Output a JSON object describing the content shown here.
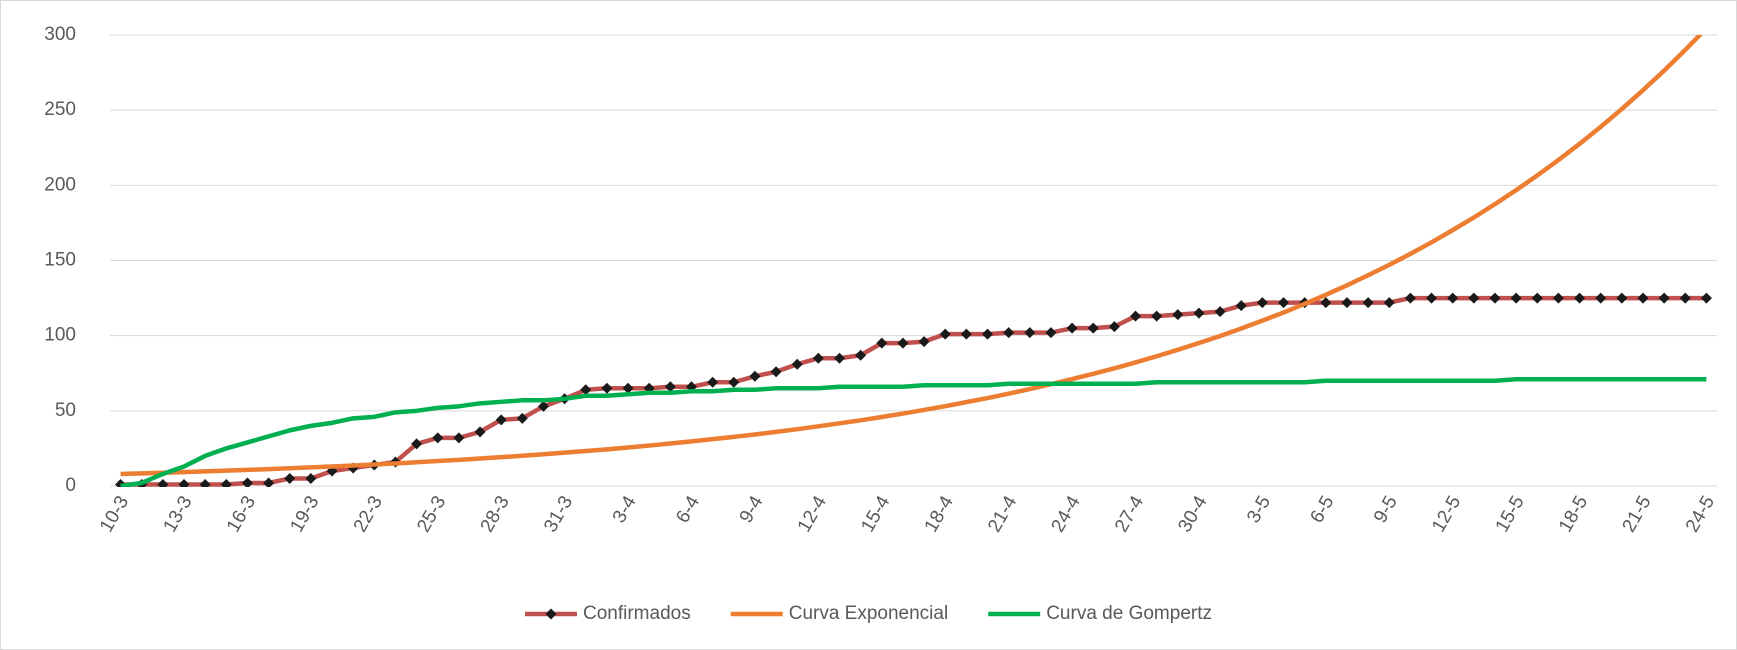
{
  "chart_data": {
    "type": "line",
    "categories": [
      "10-3",
      null,
      null,
      "13-3",
      null,
      null,
      "16-3",
      null,
      null,
      "19-3",
      null,
      null,
      "22-3",
      null,
      null,
      "25-3",
      null,
      null,
      "28-3",
      null,
      null,
      "31-3",
      null,
      null,
      "3-4",
      null,
      null,
      "6-4",
      null,
      null,
      "9-4",
      null,
      null,
      "12-4",
      null,
      null,
      "15-4",
      null,
      null,
      "18-4",
      null,
      null,
      "21-4",
      null,
      null,
      "24-4",
      null,
      null,
      "27-4",
      null,
      null,
      "30-4",
      null,
      null,
      "3-5",
      null,
      null,
      "6-5",
      null,
      null,
      "9-5",
      null,
      null,
      "12-5",
      null,
      null,
      "15-5",
      null,
      null,
      "18-5",
      null,
      null,
      "21-5",
      null,
      null,
      "24-5"
    ],
    "series": [
      {
        "name": "Confirmados",
        "color": "#c0504d",
        "marker": "diamond",
        "marker_color": "#1a1a1a",
        "values": [
          1,
          1,
          1,
          1,
          1,
          1,
          2,
          2,
          5,
          5,
          10,
          12,
          14,
          16,
          28,
          32,
          32,
          36,
          44,
          45,
          53,
          58,
          64,
          65,
          65,
          65,
          66,
          66,
          69,
          69,
          73,
          76,
          81,
          85,
          85,
          87,
          95,
          95,
          96,
          101,
          101,
          101,
          102,
          102,
          102,
          105,
          105,
          106,
          113,
          113,
          114,
          115,
          116,
          120,
          122,
          122,
          122,
          122,
          122,
          122,
          122,
          125,
          125,
          125,
          125,
          125,
          125,
          125,
          125,
          125,
          125,
          125,
          125,
          125,
          125,
          125
        ]
      },
      {
        "name": "Curva Exponencial",
        "color": "#ed7d31",
        "values": [
          8.0,
          8.4,
          8.8,
          9.2,
          9.7,
          10.2,
          10.7,
          11.2,
          11.8,
          12.4,
          13.0,
          13.6,
          14.3,
          15.0,
          15.8,
          16.6,
          17.4,
          18.3,
          19.2,
          20.1,
          21.1,
          22.2,
          23.3,
          24.4,
          25.6,
          26.9,
          28.3,
          29.7,
          31.2,
          32.7,
          34.3,
          36.0,
          37.8,
          39.7,
          41.7,
          43.7,
          45.9,
          48.2,
          50.6,
          53.1,
          55.8,
          58.5,
          61.4,
          64.5,
          67.7,
          71.1,
          74.6,
          78.3,
          82.2,
          86.3,
          90.6,
          95.1,
          99.8,
          104.8,
          110.0,
          115.4,
          121.2,
          127.2,
          133.5,
          140.2,
          147.1,
          154.4,
          162.1,
          170.2,
          178.6,
          187.5,
          196.8,
          206.6,
          216.8,
          227.6,
          238.9,
          250.8,
          263.3,
          276.3,
          290.1,
          304.5
        ]
      },
      {
        "name": "Curva de Gompertz",
        "color": "#00b050",
        "values": [
          0,
          2,
          8,
          13,
          20,
          25,
          29,
          33,
          37,
          40,
          42,
          45,
          46,
          49,
          50,
          52,
          53,
          55,
          56,
          57,
          57,
          58,
          60,
          60,
          61,
          62,
          62,
          63,
          63,
          64,
          64,
          65,
          65,
          65,
          66,
          66,
          66,
          66,
          67,
          67,
          67,
          67,
          68,
          68,
          68,
          68,
          68,
          68,
          68,
          69,
          69,
          69,
          69,
          69,
          69,
          69,
          69,
          70,
          70,
          70,
          70,
          70,
          70,
          70,
          70,
          70,
          71,
          71,
          71,
          71,
          71,
          71,
          71,
          71,
          71,
          71
        ]
      }
    ],
    "ylim": [
      0,
      300
    ],
    "yticks": [
      0,
      50,
      100,
      150,
      200,
      250,
      300
    ],
    "grid": true,
    "legend": "bottom"
  }
}
